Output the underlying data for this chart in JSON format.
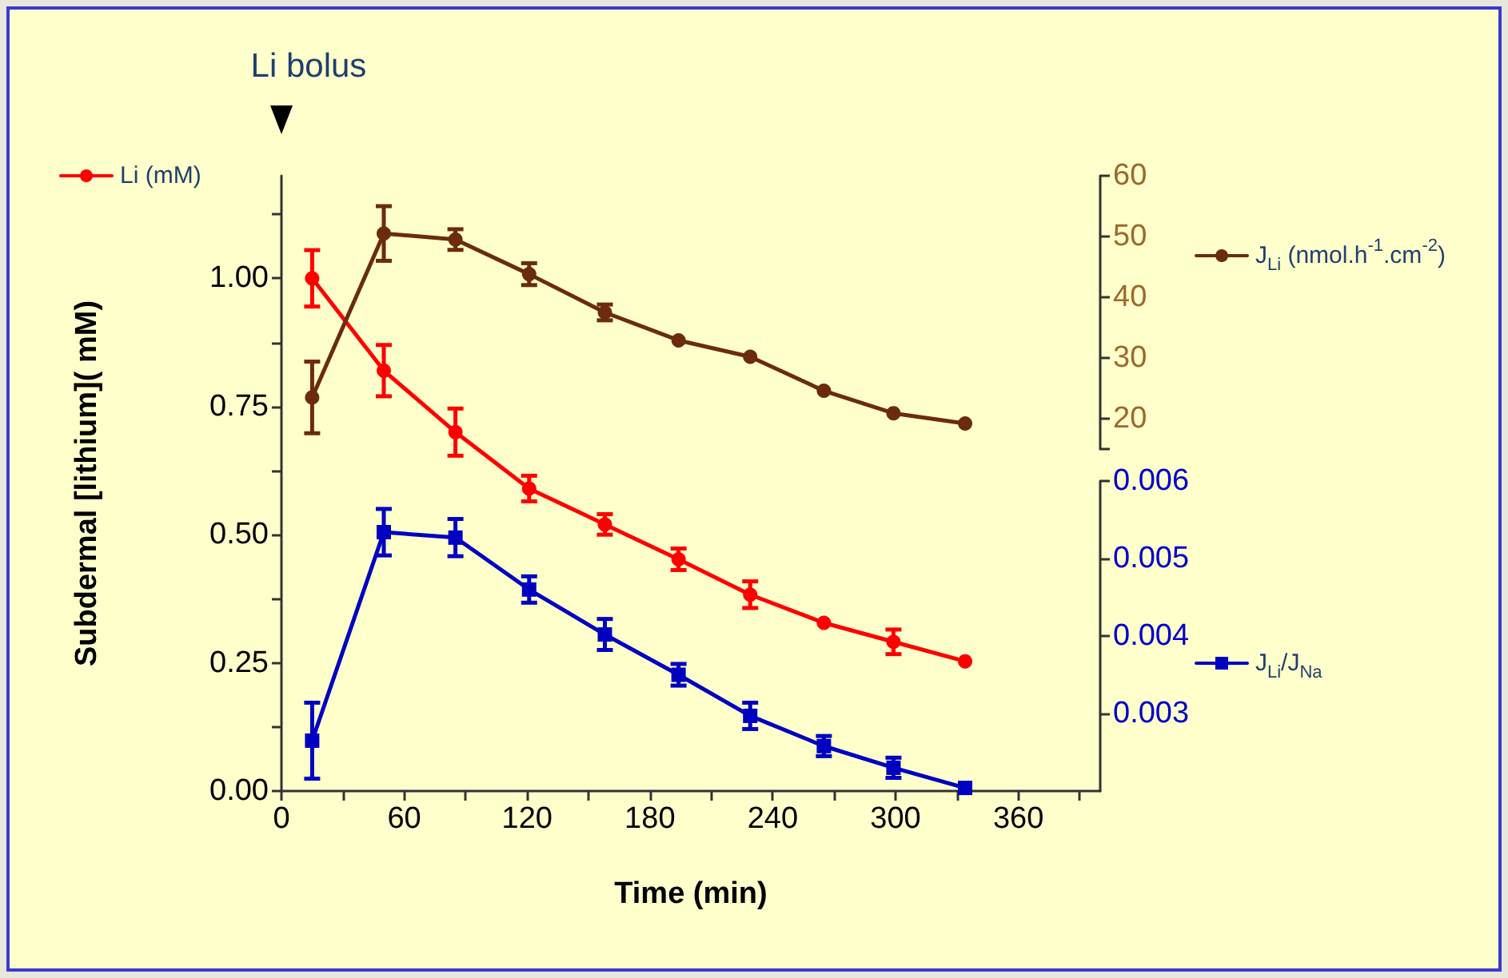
{
  "chart_data": {
    "type": "line",
    "xlabel": "Time (min)",
    "ylabel": "Subdermal [lithium]( mM)",
    "x": [
      15,
      50,
      85,
      121,
      158,
      194,
      229,
      265,
      299,
      334
    ],
    "xlim": [
      0,
      400
    ],
    "xticks": [
      0,
      {
        "value": 30,
        "label": null
      },
      60,
      {
        "value": 90,
        "label": null
      },
      120,
      {
        "value": 150,
        "label": null
      },
      180,
      {
        "value": 210,
        "label": null
      },
      240,
      {
        "value": 270,
        "label": null
      },
      300,
      {
        "value": 330,
        "label": null
      },
      360,
      {
        "value": 390,
        "label": null
      }
    ],
    "ylim": [
      0,
      1.2
    ],
    "yticks": [
      {
        "value": 0,
        "label": "0.00"
      },
      {
        "value": 0.125,
        "label": null
      },
      {
        "value": 0.25,
        "label": "0.25"
      },
      {
        "value": 0.375,
        "label": null
      },
      {
        "value": 0.5,
        "label": "0.50"
      },
      {
        "value": 0.625,
        "label": null
      },
      {
        "value": 0.75,
        "label": "0.75"
      },
      {
        "value": 0.875,
        "label": null
      },
      {
        "value": 1,
        "label": "1.00"
      },
      {
        "value": 1.125,
        "label": null
      }
    ],
    "y2lim": [
      15,
      60
    ],
    "y2ticks": [
      {
        "value": 15,
        "label": null
      },
      20,
      30,
      40,
      50,
      60
    ],
    "y3lim": [
      0.002,
      0.006
    ],
    "y3ticks": [
      0.003,
      0.004,
      0.005,
      0.006
    ],
    "grid": false,
    "legend": "right",
    "annotations": [
      "Li bolus"
    ],
    "series": [
      {
        "name": "Li (mM)",
        "color": "#ff0000",
        "marker": "circle",
        "values": [
          1.0,
          0.82,
          0.7,
          0.59,
          0.52,
          0.452,
          0.383,
          0.328,
          0.291,
          0.253
        ],
        "errors": [
          0.055,
          0.05,
          0.046,
          0.025,
          0.02,
          0.021,
          0.026,
          null,
          0.024,
          null
        ]
      },
      {
        "name": "J$_{Li}$ (nmol.h$^{-1}$.cm$^{-2}$)",
        "color": "#6b2c0c",
        "marker": "circle",
        "axis": "y2",
        "values": [
          23.5,
          50.5,
          49.5,
          43.8,
          37.5,
          32.9,
          30.2,
          24.6,
          20.9,
          19.2
        ],
        "errors": [
          5.9,
          4.5,
          1.7,
          1.8,
          1.3,
          null,
          null,
          null,
          null,
          null
        ]
      },
      {
        "name": "J$_{Li}$/J$_{Na}$",
        "color": "#0000c0",
        "marker": "square",
        "axis": "y3",
        "values": [
          0.00265,
          0.00534,
          0.00527,
          0.0046,
          0.00402,
          0.0035,
          0.00297,
          0.00258,
          0.0023,
          0.00204
        ],
        "errors": [
          0.00049,
          0.0003,
          0.00024,
          0.00017,
          0.0002,
          0.00014,
          0.00017,
          0.00013,
          0.00013,
          null
        ]
      }
    ]
  }
}
